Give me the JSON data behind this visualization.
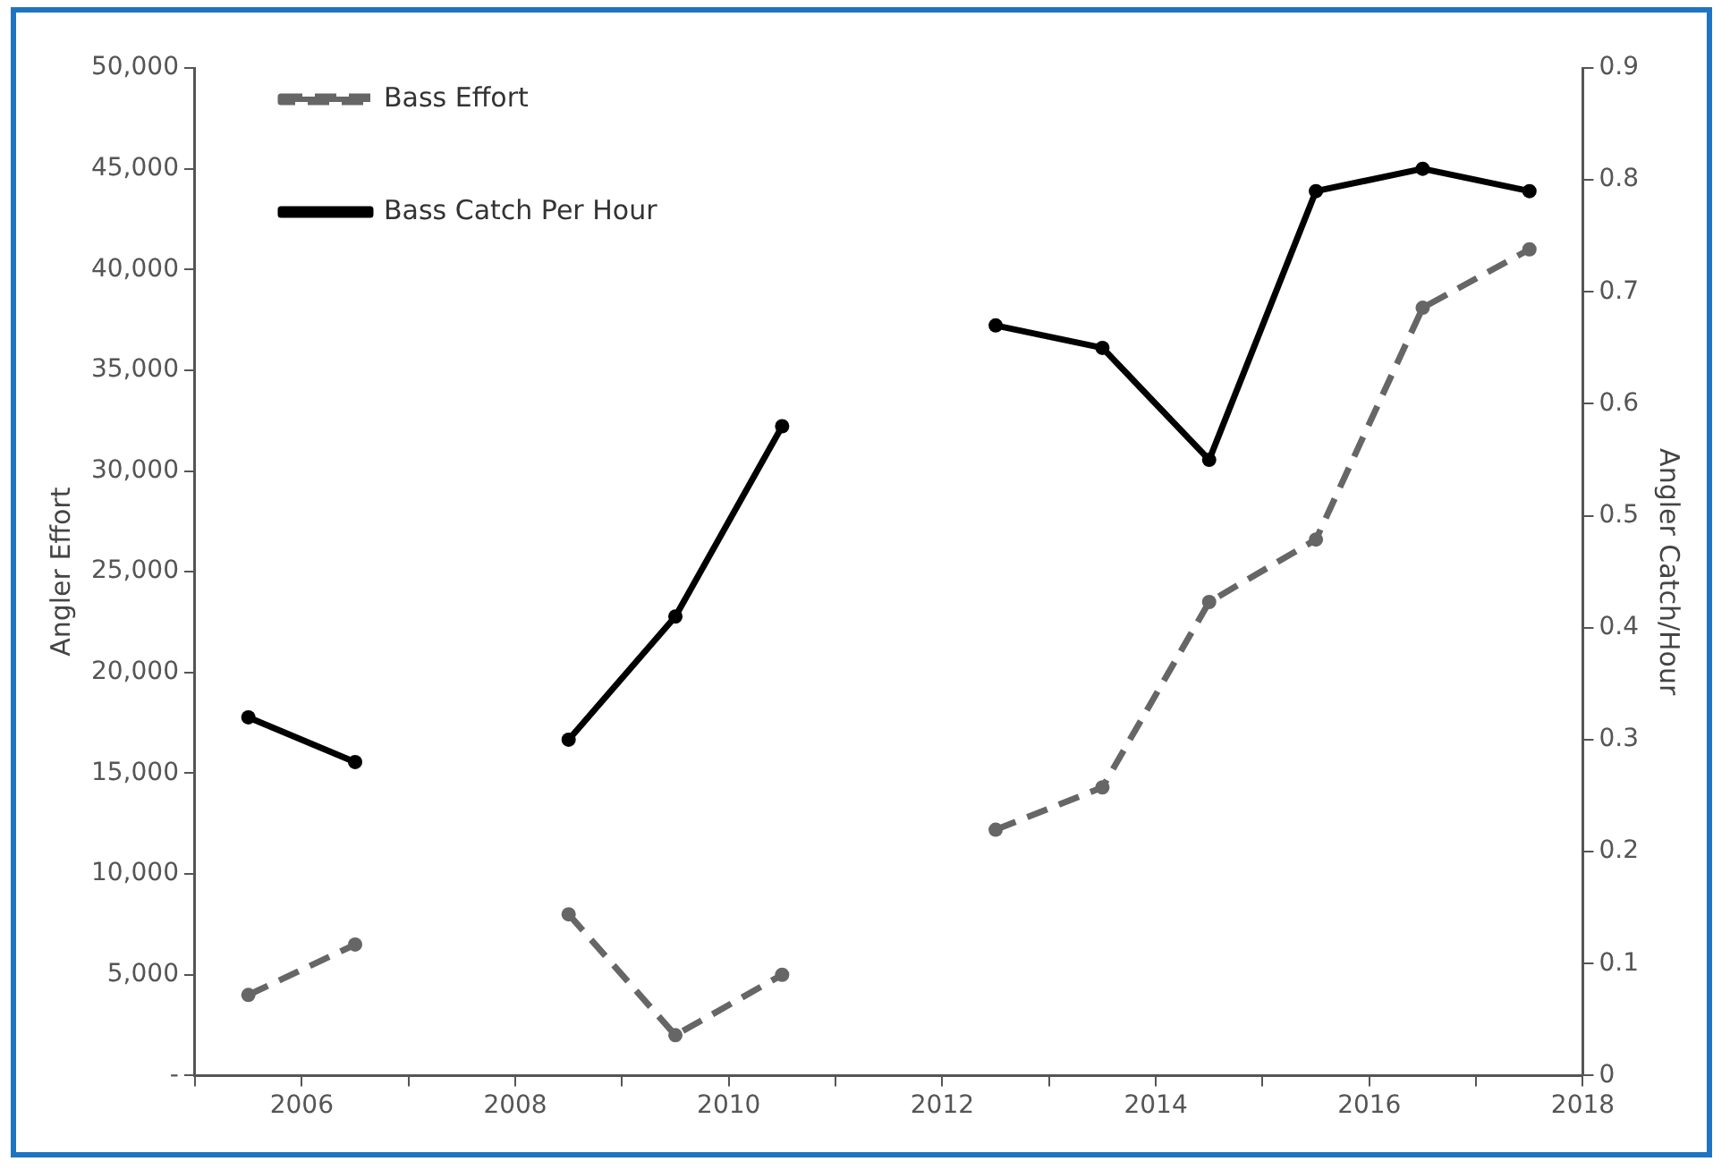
{
  "chart_data": {
    "type": "line",
    "xlabel": null,
    "ylabel": "Angler Effort",
    "y2label": "Angler Catch/Hour",
    "x": [
      2005.5,
      2006.5,
      2007.5,
      2008.5,
      2009.5,
      2010.5,
      2011.5,
      2012.5,
      2013.5,
      2014.5,
      2015.5,
      2016.5,
      2017.5
    ],
    "series": [
      {
        "name": "Bass Effort",
        "color": "#666666",
        "line_style": "dashed",
        "values": [
          4000,
          6500,
          null,
          8000,
          2000,
          5000,
          null,
          12200,
          14300,
          23500,
          26600,
          38100,
          41000
        ]
      },
      {
        "name": "Bass Catch Per Hour",
        "color": "#000000",
        "line_style": "solid",
        "axis": "y2",
        "values": [
          0.32,
          0.28,
          null,
          0.3,
          0.41,
          0.58,
          null,
          0.67,
          0.65,
          0.55,
          0.79,
          0.81,
          0.79
        ]
      }
    ],
    "xlim": [
      2005,
      2018
    ],
    "xticks": [
      {
        "value": 2005,
        "label": null
      },
      {
        "value": 2006,
        "label": "2006"
      },
      {
        "value": 2007,
        "label": null
      },
      {
        "value": 2008,
        "label": "2008"
      },
      {
        "value": 2009,
        "label": null
      },
      {
        "value": 2010,
        "label": "2010"
      },
      {
        "value": 2011,
        "label": null
      },
      {
        "value": 2012,
        "label": "2012"
      },
      {
        "value": 2013,
        "label": null
      },
      {
        "value": 2014,
        "label": "2014"
      },
      {
        "value": 2015,
        "label": null
      },
      {
        "value": 2016,
        "label": "2016"
      },
      {
        "value": 2017,
        "label": null
      },
      {
        "value": 2018,
        "label": "2018"
      }
    ],
    "ylim": [
      0,
      50000
    ],
    "yticks": [
      {
        "value": 0,
        "label": "-"
      },
      {
        "value": 5000,
        "label": "5,000"
      },
      {
        "value": 10000,
        "label": "10,000"
      },
      {
        "value": 15000,
        "label": "15,000"
      },
      {
        "value": 20000,
        "label": "20,000"
      },
      {
        "value": 25000,
        "label": "25,000"
      },
      {
        "value": 30000,
        "label": "30,000"
      },
      {
        "value": 35000,
        "label": "35,000"
      },
      {
        "value": 40000,
        "label": "40,000"
      },
      {
        "value": 45000,
        "label": "45,000"
      },
      {
        "value": 50000,
        "label": "50,000"
      }
    ],
    "y2lim": [
      0,
      0.9
    ],
    "y2ticks": [
      0,
      0.1,
      0.2,
      0.3,
      0.4,
      0.5,
      0.6,
      0.7,
      0.8,
      0.9
    ],
    "grid": false,
    "legend": "top left",
    "marker": "circle"
  }
}
